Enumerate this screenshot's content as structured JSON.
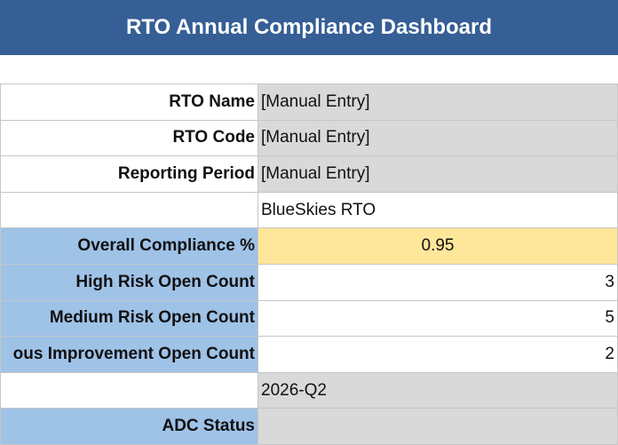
{
  "header": {
    "title": "RTO Annual Compliance Dashboard"
  },
  "table": {
    "rows": [
      {
        "label": "RTO Name",
        "value": "[Manual Entry]"
      },
      {
        "label": "RTO Code",
        "value": "[Manual Entry]"
      },
      {
        "label": "Reporting Period",
        "value": "[Manual Entry]"
      },
      {
        "value": "BlueSkies RTO"
      },
      {
        "label": "Overall Compliance %",
        "value": 0.95
      },
      {
        "label": "High Risk Open Count",
        "value": 3
      },
      {
        "label": "Medium Risk Open Count",
        "value": 5
      },
      {
        "label": "ous Improvement Open Count",
        "value": 2
      },
      {
        "value": "2026-Q2"
      },
      {
        "label": "ADC Status"
      }
    ]
  }
}
